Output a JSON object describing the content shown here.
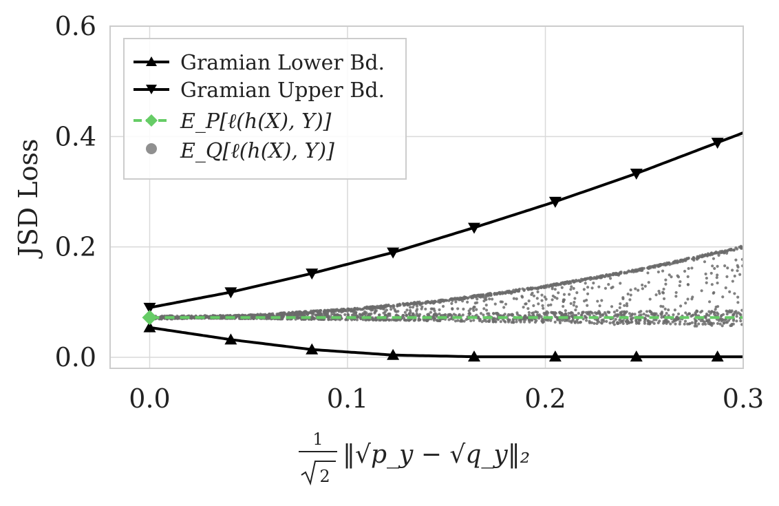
{
  "chart_data": {
    "type": "line",
    "title": "",
    "xlabel": {
      "frac_num": "1",
      "frac_den": "2",
      "body": "‖√p_y − √q_y‖₂"
    },
    "ylabel": "JSD Loss",
    "xlim": [
      -0.02,
      0.3
    ],
    "ylim": [
      -0.02,
      0.6
    ],
    "xticks": [
      0.0,
      0.1,
      0.2,
      0.3
    ],
    "xtick_labels": [
      "0.0",
      "0.1",
      "0.2",
      "0.3"
    ],
    "yticks": [
      0.0,
      0.2,
      0.4,
      0.6
    ],
    "ytick_labels": [
      "0.0",
      "0.2",
      "0.4",
      "0.6"
    ],
    "grid": true,
    "legend_position": "top-left",
    "colors": {
      "bounds": "#000000",
      "ep": "#66cc66",
      "eq": "#6b6b6b",
      "grid": "#d9d9d9",
      "frame": "#cccccc"
    },
    "series": [
      {
        "name": "Gramian Lower Bd.",
        "marker": "triangle-up",
        "x": [
          0.0,
          0.041,
          0.082,
          0.123,
          0.164,
          0.205,
          0.246,
          0.287
        ],
        "values": [
          0.054,
          0.032,
          0.014,
          0.004,
          0.001,
          0.001,
          0.001,
          0.001
        ]
      },
      {
        "name": "Gramian Upper Bd.",
        "marker": "triangle-down",
        "x": [
          0.0,
          0.041,
          0.082,
          0.123,
          0.164,
          0.205,
          0.246,
          0.287
        ],
        "values": [
          0.09,
          0.118,
          0.152,
          0.19,
          0.235,
          0.282,
          0.333,
          0.389
        ]
      },
      {
        "name": "E_P[ℓ(h(X), Y)]",
        "marker": "diamond",
        "x": [
          0.0,
          0.3
        ],
        "values": [
          0.072,
          0.072
        ]
      },
      {
        "name": "E_Q[ℓ(h(X), Y)]",
        "marker": "circle",
        "type": "scatter-band",
        "x": [
          0.0,
          0.05,
          0.1,
          0.15,
          0.2,
          0.25,
          0.3
        ],
        "upper": [
          0.072,
          0.077,
          0.088,
          0.105,
          0.13,
          0.162,
          0.202
        ],
        "lower": [
          0.072,
          0.07,
          0.068,
          0.066,
          0.062,
          0.058,
          0.055
        ]
      }
    ]
  }
}
